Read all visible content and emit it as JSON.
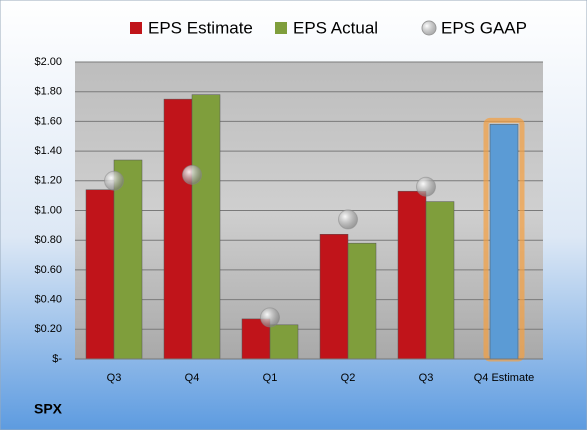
{
  "chart_data": {
    "type": "bar",
    "ticker": "SPX",
    "categories": [
      "Q3",
      "Q4",
      "Q1",
      "Q2",
      "Q3",
      "Q4 Estimate"
    ],
    "series": [
      {
        "name": "EPS Estimate",
        "color": "#c0141a",
        "highlight_color": "#5b9bd5",
        "values": [
          1.14,
          1.75,
          0.27,
          0.84,
          1.13,
          1.58
        ]
      },
      {
        "name": "EPS Actual",
        "color": "#7f9e3c",
        "values": [
          1.34,
          1.78,
          0.23,
          0.78,
          1.06,
          null
        ]
      },
      {
        "name": "EPS GAAP",
        "color": "#a8a8a8",
        "marker": "circle",
        "values": [
          1.2,
          1.24,
          0.28,
          0.94,
          1.16,
          null
        ]
      }
    ],
    "ylim": [
      0,
      2
    ],
    "yticks": [
      {
        "value": 0,
        "label": "$-"
      },
      {
        "value": 0.2,
        "label": "$0.20"
      },
      {
        "value": 0.4,
        "label": "$0.40"
      },
      {
        "value": 0.6,
        "label": "$0.60"
      },
      {
        "value": 0.8,
        "label": "$0.80"
      },
      {
        "value": 1.0,
        "label": "$1.00"
      },
      {
        "value": 1.2,
        "label": "$1.20"
      },
      {
        "value": 1.4,
        "label": "$1.40"
      },
      {
        "value": 1.6,
        "label": "$1.60"
      },
      {
        "value": 1.8,
        "label": "$1.80"
      },
      {
        "value": 2.0,
        "label": "$2.00"
      }
    ],
    "grid": true
  }
}
